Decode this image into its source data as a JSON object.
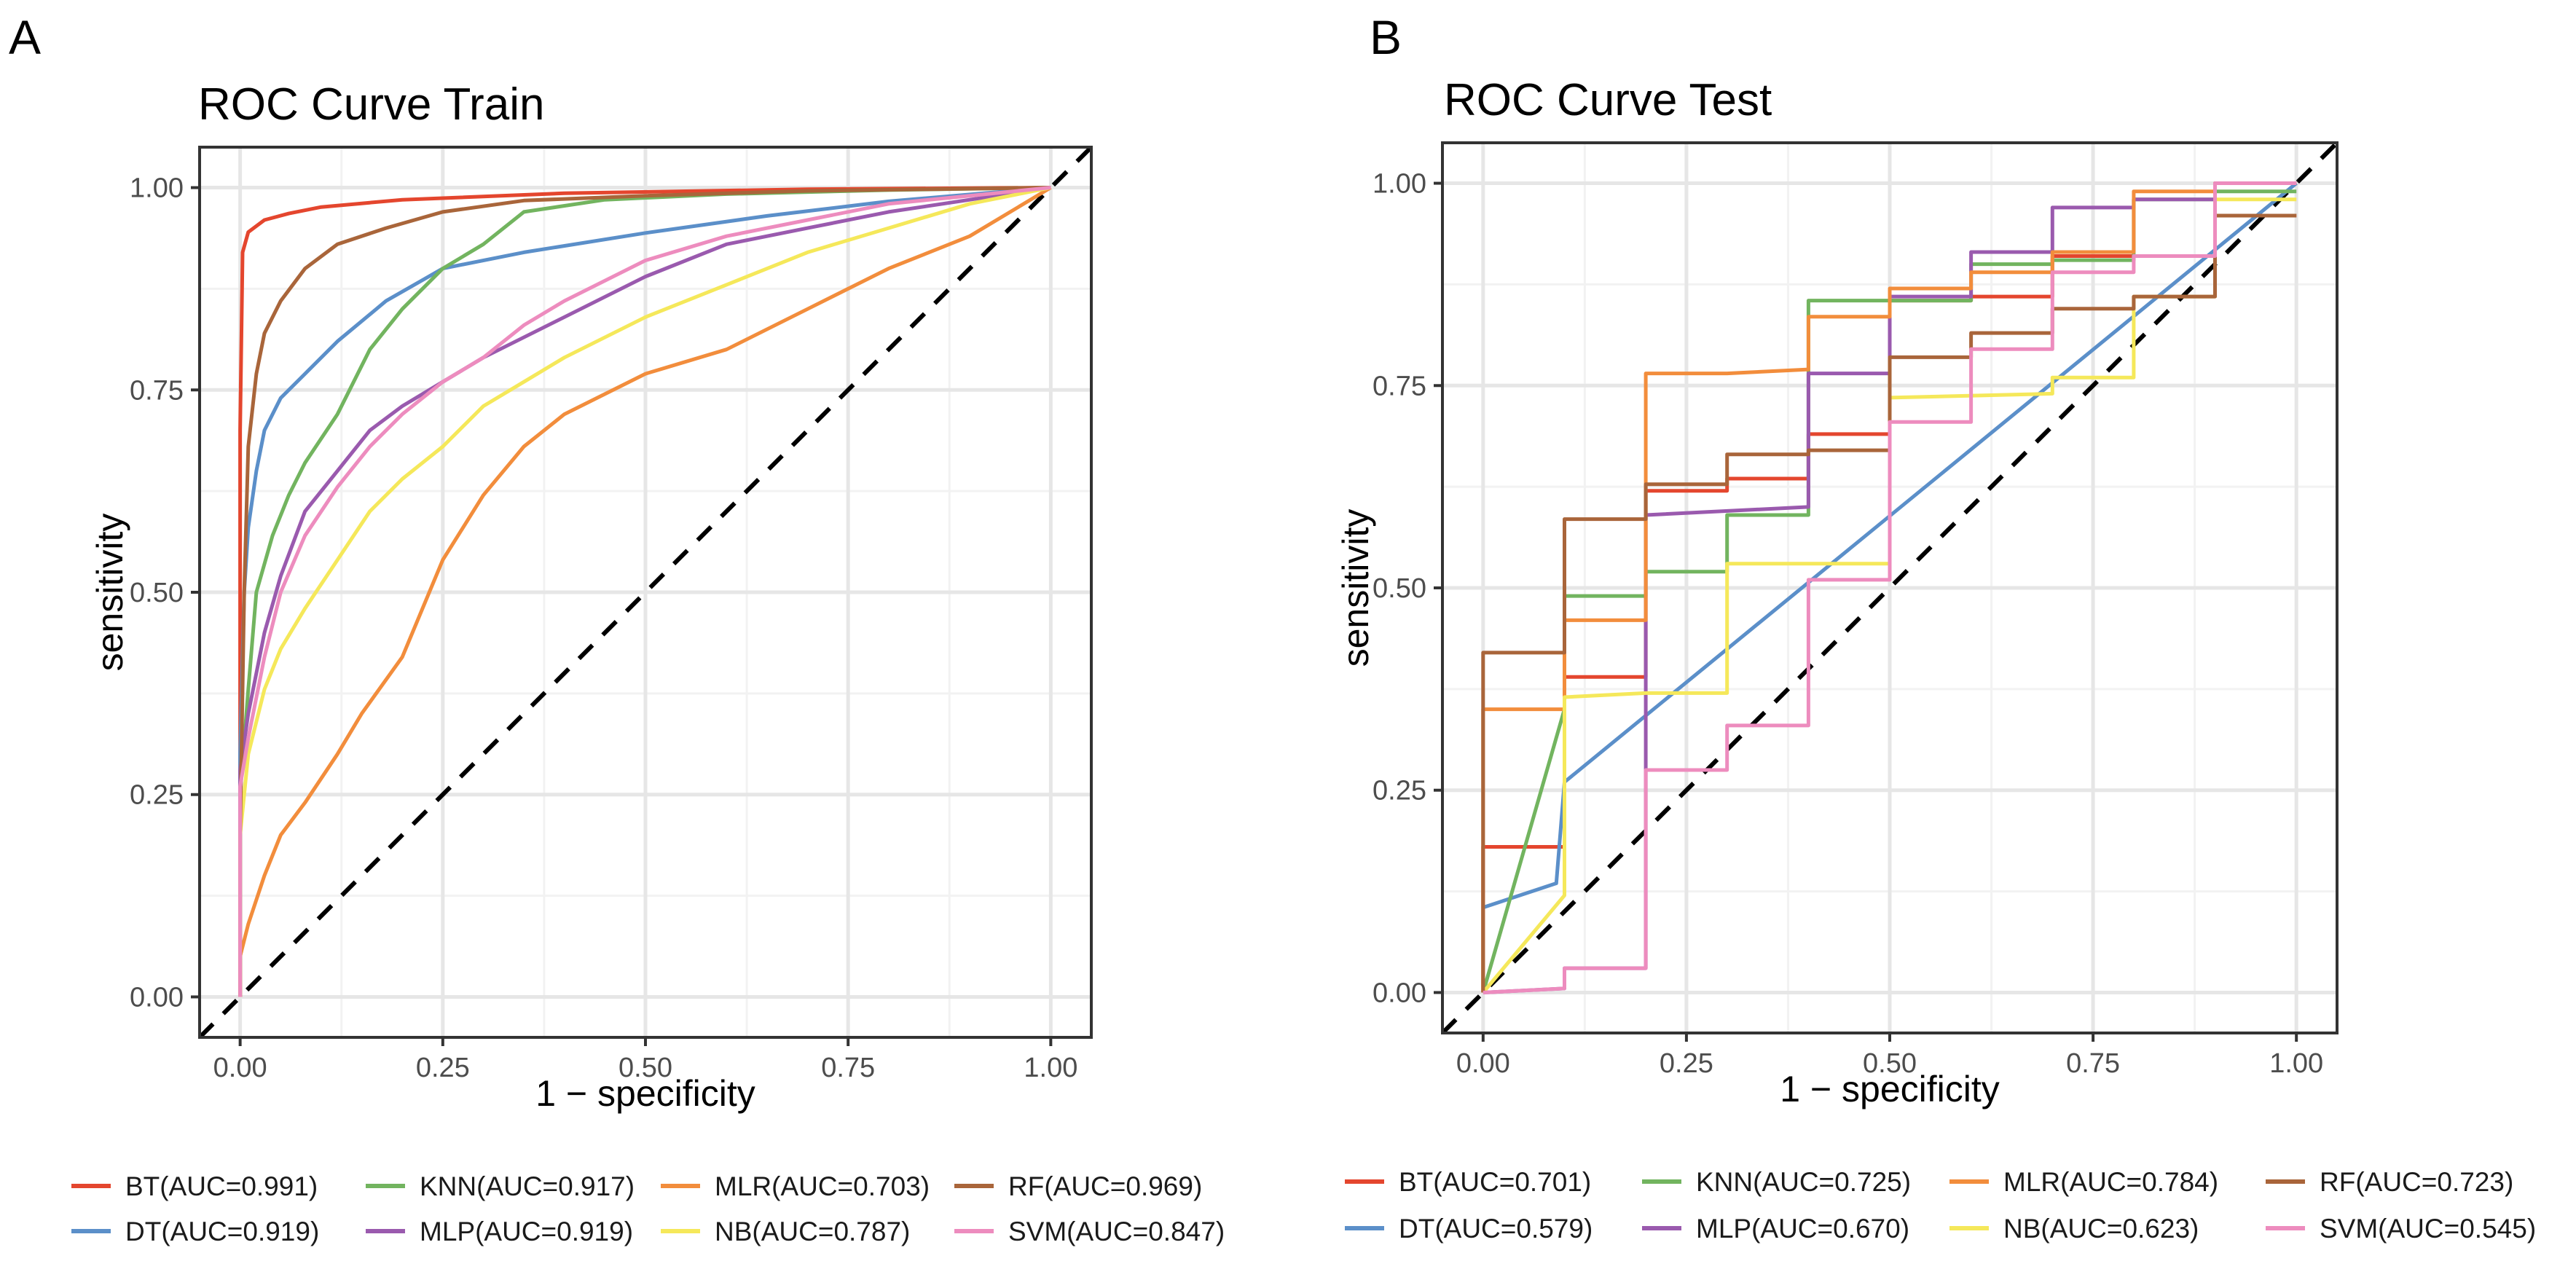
{
  "chart_data": [
    {
      "type": "line",
      "panel": "A",
      "title": "ROC Curve Train",
      "xlabel": "1 − specificity",
      "ylabel": "sensitivity",
      "xlim": [
        -0.05,
        1.05
      ],
      "ylim": [
        -0.05,
        1.05
      ],
      "ticks": [
        0,
        0.25,
        0.5,
        0.75,
        1
      ],
      "tick_labels": [
        "0.00",
        "0.25",
        "0.50",
        "0.75",
        "1.00"
      ],
      "grid": true,
      "legend_position": "bottom",
      "reference_line": "dashed diagonal",
      "series": [
        {
          "name": "BT(AUC=0.991)",
          "color": "#E4462E",
          "x": [
            0,
            0,
            0.003,
            0.01,
            0.03,
            0.06,
            0.1,
            0.2,
            0.4,
            0.7,
            1
          ],
          "y": [
            0,
            0.7,
            0.92,
            0.945,
            0.96,
            0.968,
            0.976,
            0.985,
            0.993,
            0.998,
            1
          ]
        },
        {
          "name": "DT(AUC=0.919)",
          "color": "#5B8FC9",
          "x": [
            0,
            0,
            0.005,
            0.01,
            0.02,
            0.03,
            0.05,
            0.08,
            0.12,
            0.18,
            0.25,
            0.35,
            0.5,
            0.65,
            0.8,
            1
          ],
          "y": [
            0,
            0.3,
            0.5,
            0.58,
            0.65,
            0.7,
            0.74,
            0.77,
            0.81,
            0.86,
            0.9,
            0.92,
            0.944,
            0.965,
            0.983,
            1
          ]
        },
        {
          "name": "KNN(AUC=0.917)",
          "color": "#72B45F",
          "x": [
            0,
            0,
            0.01,
            0.02,
            0.04,
            0.06,
            0.08,
            0.12,
            0.16,
            0.2,
            0.25,
            0.3,
            0.35,
            0.45,
            0.6,
            0.8,
            1
          ],
          "y": [
            0,
            0.25,
            0.38,
            0.5,
            0.57,
            0.62,
            0.66,
            0.72,
            0.8,
            0.85,
            0.9,
            0.93,
            0.97,
            0.985,
            0.992,
            0.997,
            1
          ]
        },
        {
          "name": "MLP(AUC=0.919)",
          "color": "#9A5AAE",
          "x": [
            0,
            0,
            0.01,
            0.03,
            0.05,
            0.08,
            0.12,
            0.16,
            0.2,
            0.25,
            0.3,
            0.4,
            0.5,
            0.6,
            0.7,
            0.8,
            0.9,
            1
          ],
          "y": [
            0,
            0.28,
            0.35,
            0.45,
            0.52,
            0.6,
            0.65,
            0.7,
            0.73,
            0.76,
            0.79,
            0.84,
            0.89,
            0.93,
            0.95,
            0.97,
            0.985,
            1
          ]
        },
        {
          "name": "MLR(AUC=0.703)",
          "color": "#F28D3C",
          "x": [
            0,
            0,
            0.01,
            0.03,
            0.05,
            0.08,
            0.12,
            0.15,
            0.2,
            0.25,
            0.3,
            0.35,
            0.4,
            0.5,
            0.6,
            0.7,
            0.8,
            0.9,
            1
          ],
          "y": [
            0,
            0.05,
            0.09,
            0.15,
            0.2,
            0.24,
            0.3,
            0.35,
            0.42,
            0.54,
            0.62,
            0.68,
            0.72,
            0.77,
            0.8,
            0.85,
            0.9,
            0.94,
            1
          ]
        },
        {
          "name": "NB(AUC=0.787)",
          "color": "#F5E85A",
          "x": [
            0,
            0,
            0.01,
            0.03,
            0.05,
            0.08,
            0.12,
            0.16,
            0.2,
            0.25,
            0.3,
            0.35,
            0.4,
            0.5,
            0.6,
            0.7,
            0.8,
            0.9,
            1
          ],
          "y": [
            0,
            0.2,
            0.3,
            0.38,
            0.43,
            0.48,
            0.54,
            0.6,
            0.64,
            0.68,
            0.73,
            0.76,
            0.79,
            0.84,
            0.88,
            0.92,
            0.95,
            0.98,
            1
          ]
        },
        {
          "name": "RF(AUC=0.969)",
          "color": "#A9653A",
          "x": [
            0,
            0,
            0.005,
            0.01,
            0.02,
            0.03,
            0.05,
            0.08,
            0.12,
            0.18,
            0.25,
            0.35,
            0.5,
            0.7,
            1
          ],
          "y": [
            0,
            0.2,
            0.5,
            0.68,
            0.77,
            0.82,
            0.86,
            0.9,
            0.93,
            0.95,
            0.97,
            0.984,
            0.99,
            0.996,
            1
          ]
        },
        {
          "name": "SVM(AUC=0.847)",
          "color": "#ED8CBE",
          "x": [
            0,
            0,
            0.01,
            0.03,
            0.05,
            0.08,
            0.12,
            0.16,
            0.2,
            0.25,
            0.3,
            0.35,
            0.4,
            0.5,
            0.6,
            0.7,
            0.8,
            0.9,
            1
          ],
          "y": [
            0,
            0.26,
            0.32,
            0.42,
            0.5,
            0.57,
            0.63,
            0.68,
            0.72,
            0.76,
            0.79,
            0.83,
            0.86,
            0.91,
            0.94,
            0.96,
            0.98,
            0.99,
            1
          ]
        }
      ]
    },
    {
      "type": "line",
      "panel": "B",
      "title": "ROC Curve Test",
      "xlabel": "1 − specificity",
      "ylabel": "sensitivity",
      "xlim": [
        -0.05,
        1.05
      ],
      "ylim": [
        -0.05,
        1.05
      ],
      "ticks": [
        0,
        0.25,
        0.5,
        0.75,
        1
      ],
      "tick_labels": [
        "0.00",
        "0.25",
        "0.50",
        "0.75",
        "1.00"
      ],
      "grid": true,
      "legend_position": "bottom",
      "reference_line": "dashed diagonal",
      "series": [
        {
          "name": "BT(AUC=0.701)",
          "color": "#E4462E",
          "x": [
            0,
            0,
            0.1,
            0.1,
            0.2,
            0.2,
            0.3,
            0.3,
            0.4,
            0.4,
            0.5,
            0.5,
            0.6,
            0.6,
            0.7,
            0.7,
            0.8,
            0.8,
            0.9,
            0.9,
            1
          ],
          "y": [
            0,
            0.18,
            0.18,
            0.39,
            0.39,
            0.62,
            0.62,
            0.635,
            0.635,
            0.69,
            0.69,
            0.855,
            0.855,
            0.86,
            0.86,
            0.91,
            0.91,
            0.91,
            0.91,
            0.96,
            0.96
          ]
        },
        {
          "name": "DT(AUC=0.579)",
          "color": "#5B8FC9",
          "x": [
            0,
            0.09,
            0.1,
            1
          ],
          "y": [
            0.105,
            0.135,
            0.26,
            1
          ]
        },
        {
          "name": "KNN(AUC=0.725)",
          "color": "#72B45F",
          "x": [
            0,
            0.1,
            0.1,
            0.2,
            0.2,
            0.3,
            0.3,
            0.4,
            0.4,
            0.5,
            0.5,
            0.6,
            0.6,
            0.7,
            0.7,
            0.8,
            0.8,
            0.9,
            0.9,
            1
          ],
          "y": [
            0,
            0.35,
            0.49,
            0.49,
            0.52,
            0.52,
            0.59,
            0.59,
            0.855,
            0.855,
            0.855,
            0.855,
            0.9,
            0.9,
            0.905,
            0.905,
            0.98,
            0.98,
            0.99,
            0.99
          ]
        },
        {
          "name": "MLP(AUC=0.670)",
          "color": "#9A5AAE",
          "x": [
            0,
            0.1,
            0.1,
            0.2,
            0.2,
            0.4,
            0.4,
            0.5,
            0.5,
            0.6,
            0.6,
            0.7,
            0.7,
            0.8,
            0.8,
            0.9,
            0.9,
            1
          ],
          "y": [
            0,
            0.005,
            0.03,
            0.03,
            0.59,
            0.6,
            0.765,
            0.765,
            0.86,
            0.86,
            0.915,
            0.915,
            0.97,
            0.97,
            0.98,
            0.98,
            1,
            1
          ]
        },
        {
          "name": "MLR(AUC=0.784)",
          "color": "#F28D3C",
          "x": [
            0,
            0,
            0.1,
            0.1,
            0.2,
            0.2,
            0.3,
            0.4,
            0.4,
            0.5,
            0.5,
            0.6,
            0.6,
            0.7,
            0.7,
            0.8,
            0.8,
            0.9,
            0.9,
            1
          ],
          "y": [
            0,
            0.35,
            0.35,
            0.46,
            0.46,
            0.765,
            0.765,
            0.77,
            0.835,
            0.835,
            0.87,
            0.87,
            0.89,
            0.89,
            0.915,
            0.915,
            0.99,
            0.99,
            1,
            1
          ]
        },
        {
          "name": "NB(AUC=0.623)",
          "color": "#F5E85A",
          "x": [
            0,
            0.1,
            0.1,
            0.2,
            0.3,
            0.3,
            0.4,
            0.4,
            0.5,
            0.5,
            0.7,
            0.7,
            0.8,
            0.8,
            0.9,
            0.9,
            1
          ],
          "y": [
            0,
            0.12,
            0.365,
            0.37,
            0.37,
            0.53,
            0.53,
            0.53,
            0.53,
            0.735,
            0.74,
            0.76,
            0.76,
            0.86,
            0.86,
            0.98,
            0.98
          ]
        },
        {
          "name": "RF(AUC=0.723)",
          "color": "#A9653A",
          "x": [
            0,
            0,
            0.1,
            0.1,
            0.2,
            0.2,
            0.3,
            0.3,
            0.4,
            0.4,
            0.5,
            0.5,
            0.6,
            0.6,
            0.7,
            0.7,
            0.8,
            0.8,
            0.9,
            0.9,
            1
          ],
          "y": [
            0,
            0.42,
            0.42,
            0.585,
            0.585,
            0.628,
            0.628,
            0.665,
            0.665,
            0.67,
            0.67,
            0.785,
            0.785,
            0.815,
            0.815,
            0.845,
            0.845,
            0.86,
            0.86,
            0.96,
            0.96
          ]
        },
        {
          "name": "SVM(AUC=0.545)",
          "color": "#ED8CBE",
          "x": [
            0,
            0.1,
            0.1,
            0.2,
            0.2,
            0.3,
            0.3,
            0.4,
            0.4,
            0.5,
            0.5,
            0.6,
            0.6,
            0.7,
            0.7,
            0.8,
            0.8,
            0.9,
            0.9,
            1
          ],
          "y": [
            0,
            0.005,
            0.03,
            0.03,
            0.275,
            0.275,
            0.33,
            0.33,
            0.51,
            0.51,
            0.705,
            0.705,
            0.795,
            0.795,
            0.89,
            0.89,
            0.91,
            0.91,
            1,
            1
          ]
        }
      ]
    }
  ]
}
